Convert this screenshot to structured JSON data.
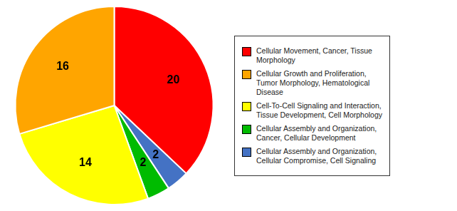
{
  "chart_data": {
    "type": "pie",
    "values": [
      20,
      2,
      2,
      14,
      16
    ],
    "colors": [
      "#ff0000",
      "#4472c4",
      "#00bb00",
      "#ffff00",
      "#ffa500"
    ],
    "data_labels": true,
    "legend": "right",
    "series": [
      {
        "name": "Cellular Movement, Cancer, Tissue\nMorphology",
        "color": "#ff0000"
      },
      {
        "name": "Cellular Growth and Proliferation,\nTumor Morphology, Hematological\nDisease",
        "color": "#ffa500"
      },
      {
        "name": "Cell-To-Cell Signaling and Interaction,\nTissue Development, Cell Morphology",
        "color": "#ffff00"
      },
      {
        "name": "Cellular Assembly and Organization,\nCancer, Cellular Development",
        "color": "#00bb00"
      },
      {
        "name": "Cellular Assembly and Organization,\nCellular Compromise, Cell Signaling",
        "color": "#4472c4"
      }
    ]
  }
}
